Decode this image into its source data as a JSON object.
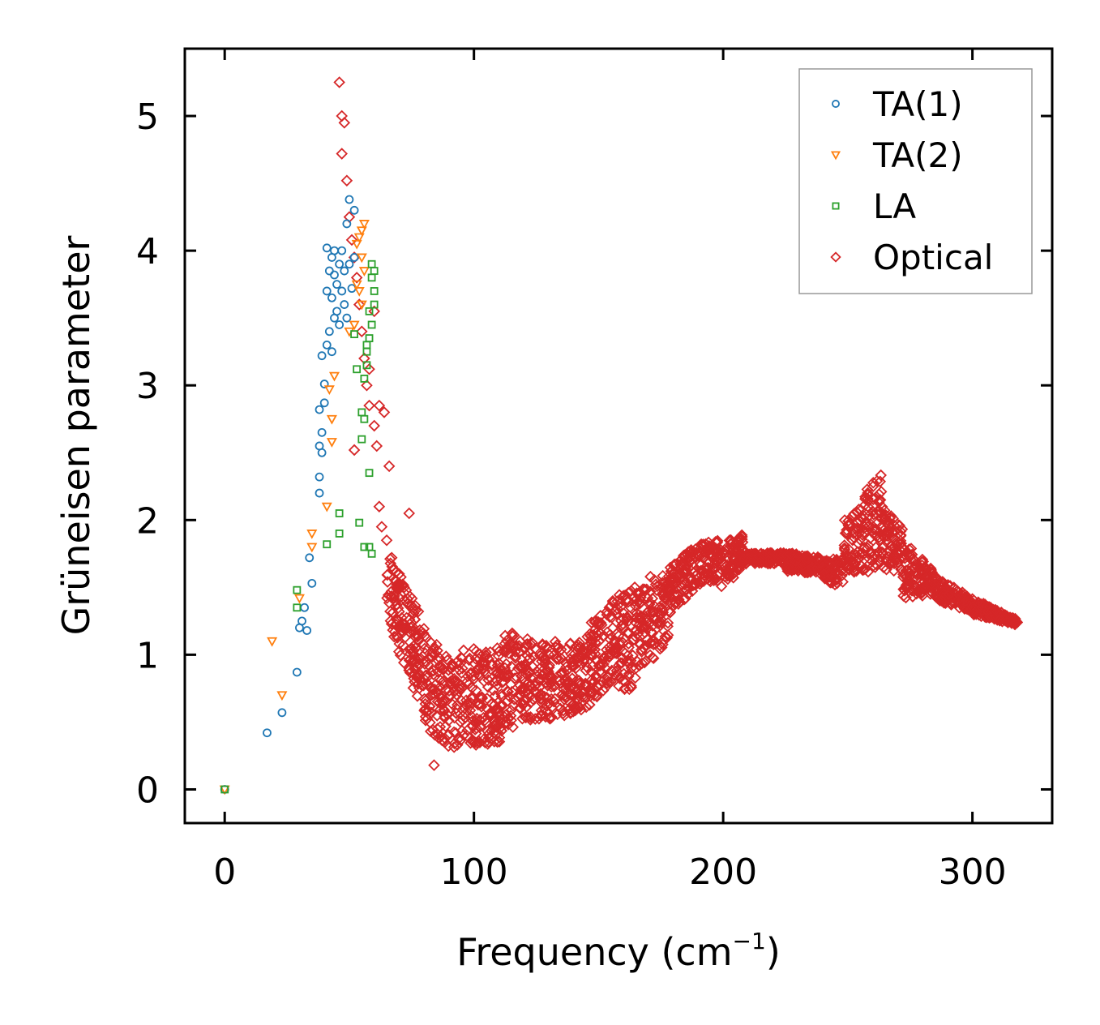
{
  "chart_data": {
    "type": "scatter",
    "title": "",
    "xlabel": "Frequency (cm",
    "xlabel_superscript": "−1",
    "xlabel_suffix": ")",
    "ylabel": "Grüneisen parameter",
    "xlim": [
      -16,
      332
    ],
    "ylim": [
      -0.25,
      5.5
    ],
    "xticks": [
      0,
      100,
      200,
      300
    ],
    "xtick_labels": [
      "0",
      "100",
      "200",
      "300"
    ],
    "yticks": [
      0,
      1,
      2,
      3,
      4,
      5
    ],
    "ytick_labels": [
      "0",
      "1",
      "2",
      "3",
      "4",
      "5"
    ],
    "grid": false,
    "legend_position": "top-right",
    "series": [
      {
        "name": "TA(1)",
        "marker": "circle",
        "color": "#1f77b4",
        "points": [
          [
            0,
            0
          ],
          [
            17,
            0.42
          ],
          [
            23,
            0.57
          ],
          [
            29,
            0.87
          ],
          [
            30,
            1.2
          ],
          [
            31,
            1.25
          ],
          [
            32,
            1.35
          ],
          [
            33,
            1.18
          ],
          [
            34,
            1.72
          ],
          [
            35,
            1.53
          ],
          [
            38,
            2.2
          ],
          [
            38,
            2.32
          ],
          [
            38,
            2.55
          ],
          [
            38,
            2.82
          ],
          [
            39,
            2.65
          ],
          [
            39,
            2.5
          ],
          [
            39,
            3.22
          ],
          [
            40,
            3.01
          ],
          [
            40,
            2.87
          ],
          [
            41,
            3.3
          ],
          [
            42,
            3.4
          ],
          [
            43,
            3.25
          ],
          [
            44,
            3.5
          ],
          [
            41,
            3.7
          ],
          [
            42,
            3.85
          ],
          [
            43,
            3.95
          ],
          [
            44,
            4.0
          ],
          [
            45,
            3.75
          ],
          [
            46,
            3.9
          ],
          [
            47,
            4.0
          ],
          [
            48,
            3.85
          ],
          [
            49,
            4.2
          ],
          [
            50,
            4.38
          ],
          [
            52,
            4.3
          ],
          [
            43,
            3.65
          ],
          [
            45,
            3.55
          ],
          [
            47,
            3.7
          ],
          [
            48,
            3.6
          ],
          [
            50,
            3.9
          ],
          [
            52,
            3.95
          ],
          [
            46,
            3.45
          ],
          [
            49,
            3.5
          ],
          [
            41,
            4.02
          ],
          [
            44,
            3.82
          ],
          [
            51,
            3.72
          ]
        ]
      },
      {
        "name": "TA(2)",
        "marker": "triangle-down",
        "color": "#ff7f0e",
        "points": [
          [
            0,
            0
          ],
          [
            19,
            1.1
          ],
          [
            23,
            0.7
          ],
          [
            30,
            1.42
          ],
          [
            35,
            1.8
          ],
          [
            35,
            1.9
          ],
          [
            41,
            2.1
          ],
          [
            42,
            2.97
          ],
          [
            43,
            2.75
          ],
          [
            43,
            2.58
          ],
          [
            44,
            3.07
          ],
          [
            50,
            3.4
          ],
          [
            52,
            3.45
          ],
          [
            53,
            3.75
          ],
          [
            53,
            4.05
          ],
          [
            54,
            4.1
          ],
          [
            55,
            4.15
          ],
          [
            55,
            3.95
          ],
          [
            56,
            3.85
          ],
          [
            54,
            3.7
          ],
          [
            56,
            4.2
          ],
          [
            55,
            3.6
          ]
        ]
      },
      {
        "name": "LA",
        "marker": "square",
        "color": "#2ca02c",
        "points": [
          [
            0,
            0
          ],
          [
            29,
            1.48
          ],
          [
            29,
            1.35
          ],
          [
            41,
            1.82
          ],
          [
            46,
            2.05
          ],
          [
            46,
            1.9
          ],
          [
            54,
            1.98
          ],
          [
            55,
            2.6
          ],
          [
            55,
            2.8
          ],
          [
            56,
            2.75
          ],
          [
            56,
            3.05
          ],
          [
            57,
            3.3
          ],
          [
            57,
            3.15
          ],
          [
            58,
            3.35
          ],
          [
            58,
            2.35
          ],
          [
            58,
            1.8
          ],
          [
            59,
            1.75
          ],
          [
            56,
            1.8
          ],
          [
            58,
            3.55
          ],
          [
            59,
            3.8
          ],
          [
            59,
            3.9
          ],
          [
            60,
            3.7
          ],
          [
            60,
            3.6
          ],
          [
            59,
            3.45
          ],
          [
            57,
            3.25
          ],
          [
            60,
            3.85
          ],
          [
            53,
            3.12
          ],
          [
            52,
            3.38
          ]
        ]
      },
      {
        "name": "Optical",
        "marker": "diamond",
        "color": "#d62728",
        "points": [
          [
            46,
            5.25
          ],
          [
            47,
            5.0
          ],
          [
            48,
            4.95
          ],
          [
            47,
            4.72
          ],
          [
            49,
            4.52
          ],
          [
            50,
            4.25
          ],
          [
            51,
            4.08
          ],
          [
            52,
            3.95
          ],
          [
            53,
            3.8
          ],
          [
            54,
            3.6
          ],
          [
            55,
            3.4
          ],
          [
            56,
            3.2
          ],
          [
            57,
            3.0
          ],
          [
            58,
            2.85
          ],
          [
            60,
            2.7
          ],
          [
            61,
            2.55
          ],
          [
            62,
            2.85
          ],
          [
            64,
            2.8
          ],
          [
            66,
            2.4
          ],
          [
            62,
            2.1
          ],
          [
            63,
            1.95
          ],
          [
            65,
            1.85
          ],
          [
            67,
            1.72
          ],
          [
            70,
            1.6
          ],
          [
            72,
            1.5
          ],
          [
            74,
            2.05
          ],
          [
            68,
            1.42
          ],
          [
            70,
            1.32
          ],
          [
            72,
            1.22
          ],
          [
            75,
            1.05
          ],
          [
            78,
            0.92
          ],
          [
            80,
            0.82
          ],
          [
            84,
            0.18
          ],
          [
            52,
            2.52
          ],
          [
            58,
            3.12
          ],
          [
            60,
            3.55
          ]
        ],
        "bands": [
          {
            "x": [
              65,
              81
            ],
            "low": [
              1.25,
              0.5
            ],
            "high": [
              1.8,
              1.2
            ]
          },
          {
            "x": [
              80,
              88
            ],
            "low": [
              0.5,
              0.28
            ],
            "high": [
              1.15,
              1.05
            ]
          },
          {
            "x": [
              88,
              112
            ],
            "low": [
              0.3,
              0.35
            ],
            "high": [
              1.05,
              1.05
            ]
          },
          {
            "x": [
              112,
              128
            ],
            "low": [
              0.45,
              0.5
            ],
            "high": [
              1.2,
              1.1
            ]
          },
          {
            "x": [
              128,
              145
            ],
            "low": [
              0.5,
              0.6
            ],
            "high": [
              1.1,
              1.1
            ]
          },
          {
            "x": [
              145,
              158
            ],
            "low": [
              0.6,
              0.85
            ],
            "high": [
              1.2,
              1.45
            ]
          },
          {
            "x": [
              158,
              165
            ],
            "low": [
              0.7,
              0.75
            ],
            "high": [
              1.45,
              1.55
            ]
          },
          {
            "x": [
              165,
              178
            ],
            "low": [
              0.8,
              1.1
            ],
            "high": [
              1.55,
              1.62
            ]
          },
          {
            "x": [
              178,
              190
            ],
            "low": [
              1.3,
              1.5
            ],
            "high": [
              1.65,
              1.82
            ]
          },
          {
            "x": [
              190,
              198
            ],
            "low": [
              1.5,
              1.55
            ],
            "high": [
              1.82,
              1.85
            ]
          },
          {
            "x": [
              198,
              208
            ],
            "low": [
              1.45,
              1.65
            ],
            "high": [
              1.82,
              1.9
            ]
          },
          {
            "x": [
              208,
              225
            ],
            "low": [
              1.67,
              1.68
            ],
            "high": [
              1.75,
              1.76
            ]
          },
          {
            "x": [
              225,
              240
            ],
            "low": [
              1.62,
              1.6
            ],
            "high": [
              1.76,
              1.72
            ]
          },
          {
            "x": [
              240,
              248
            ],
            "low": [
              1.55,
              1.5
            ],
            "high": [
              1.7,
              1.72
            ]
          },
          {
            "x": [
              248,
              256
            ],
            "low": [
              1.6,
              1.6
            ],
            "high": [
              2.0,
              2.1
            ]
          },
          {
            "x": [
              256,
              264
            ],
            "low": [
              1.6,
              1.65
            ],
            "high": [
              2.2,
              2.35
            ]
          },
          {
            "x": [
              264,
              272
            ],
            "low": [
              1.6,
              1.62
            ],
            "high": [
              2.1,
              1.95
            ]
          },
          {
            "x": [
              272,
              285
            ],
            "low": [
              1.42,
              1.45
            ],
            "high": [
              1.85,
              1.62
            ]
          },
          {
            "x": [
              285,
              300
            ],
            "low": [
              1.4,
              1.32
            ],
            "high": [
              1.58,
              1.42
            ]
          },
          {
            "x": [
              300,
              318
            ],
            "low": [
              1.3,
              1.22
            ],
            "high": [
              1.42,
              1.26
            ]
          }
        ]
      }
    ]
  }
}
